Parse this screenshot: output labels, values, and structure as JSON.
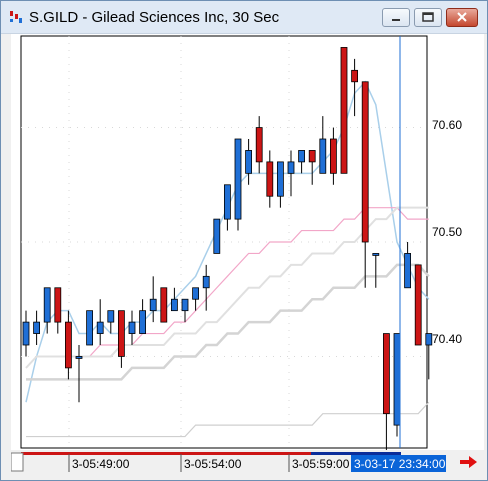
{
  "window": {
    "title": "S.GILD - Gilead Sciences Inc, 30 Sec",
    "icon": "candlestick-app-icon"
  },
  "colors": {
    "up": "#1f6fd6",
    "down": "#cc1515",
    "cursor": "#1f6fd6",
    "ma_fast": "#a9cfea",
    "ma_pink": "#f2a6c8",
    "ma_gray1": "#e0e0e0",
    "ma_gray2": "#d4d4d4",
    "time_highlight": "#0a64d8"
  },
  "axis": {
    "price_labels": [
      "70.60",
      "70.50",
      "70.40"
    ],
    "time_labels": [
      "3-05:49:00",
      "3-05:54:00",
      "3-05:59:00"
    ],
    "cursor_time": "3-03-17 23:34:00"
  },
  "chart_data": {
    "type": "candlestick",
    "ylim": [
      70.32,
      70.68
    ],
    "candles": [
      {
        "o": 70.41,
        "h": 70.44,
        "l": 70.4,
        "c": 70.43
      },
      {
        "o": 70.42,
        "h": 70.44,
        "l": 70.41,
        "c": 70.43
      },
      {
        "o": 70.43,
        "h": 70.46,
        "l": 70.42,
        "c": 70.46
      },
      {
        "o": 70.46,
        "h": 70.46,
        "l": 70.42,
        "c": 70.43
      },
      {
        "o": 70.43,
        "h": 70.44,
        "l": 70.38,
        "c": 70.39
      },
      {
        "o": 70.4,
        "h": 70.41,
        "l": 70.36,
        "c": 70.4
      },
      {
        "o": 70.41,
        "h": 70.44,
        "l": 70.41,
        "c": 70.44
      },
      {
        "o": 70.42,
        "h": 70.45,
        "l": 70.41,
        "c": 70.43
      },
      {
        "o": 70.43,
        "h": 70.44,
        "l": 70.42,
        "c": 70.44
      },
      {
        "o": 70.44,
        "h": 70.44,
        "l": 70.39,
        "c": 70.4
      },
      {
        "o": 70.42,
        "h": 70.44,
        "l": 70.41,
        "c": 70.43
      },
      {
        "o": 70.42,
        "h": 70.45,
        "l": 70.42,
        "c": 70.44
      },
      {
        "o": 70.44,
        "h": 70.47,
        "l": 70.43,
        "c": 70.45
      },
      {
        "o": 70.46,
        "h": 70.46,
        "l": 70.43,
        "c": 70.43
      },
      {
        "o": 70.44,
        "h": 70.46,
        "l": 70.44,
        "c": 70.45
      },
      {
        "o": 70.44,
        "h": 70.45,
        "l": 70.43,
        "c": 70.45
      },
      {
        "o": 70.45,
        "h": 70.46,
        "l": 70.44,
        "c": 70.46
      },
      {
        "o": 70.46,
        "h": 70.48,
        "l": 70.44,
        "c": 70.47
      },
      {
        "o": 70.49,
        "h": 70.52,
        "l": 70.49,
        "c": 70.52
      },
      {
        "o": 70.52,
        "h": 70.55,
        "l": 70.51,
        "c": 70.55
      },
      {
        "o": 70.52,
        "h": 70.59,
        "l": 70.51,
        "c": 70.59
      },
      {
        "o": 70.56,
        "h": 70.59,
        "l": 70.55,
        "c": 70.58
      },
      {
        "o": 70.6,
        "h": 70.61,
        "l": 70.56,
        "c": 70.57
      },
      {
        "o": 70.57,
        "h": 70.58,
        "l": 70.53,
        "c": 70.54
      },
      {
        "o": 70.54,
        "h": 70.57,
        "l": 70.53,
        "c": 70.57
      },
      {
        "o": 70.56,
        "h": 70.58,
        "l": 70.54,
        "c": 70.57
      },
      {
        "o": 70.57,
        "h": 70.58,
        "l": 70.56,
        "c": 70.58
      },
      {
        "o": 70.58,
        "h": 70.58,
        "l": 70.55,
        "c": 70.57
      },
      {
        "o": 70.56,
        "h": 70.61,
        "l": 70.56,
        "c": 70.59
      },
      {
        "o": 70.59,
        "h": 70.6,
        "l": 70.55,
        "c": 70.56
      },
      {
        "o": 70.67,
        "h": 70.67,
        "l": 70.56,
        "c": 70.56
      },
      {
        "o": 70.65,
        "h": 70.66,
        "l": 70.61,
        "c": 70.64
      },
      {
        "o": 70.64,
        "h": 70.64,
        "l": 70.46,
        "c": 70.5
      },
      {
        "o": 70.49,
        "h": 70.49,
        "l": 70.46,
        "c": 70.49
      },
      {
        "o": 70.42,
        "h": 70.42,
        "l": 70.31,
        "c": 70.35
      },
      {
        "o": 70.34,
        "h": 70.42,
        "l": 70.33,
        "c": 70.42
      },
      {
        "o": 70.46,
        "h": 70.5,
        "l": 70.46,
        "c": 70.49
      },
      {
        "o": 70.48,
        "h": 70.48,
        "l": 70.41,
        "c": 70.41
      },
      {
        "o": 70.41,
        "h": 70.42,
        "l": 70.38,
        "c": 70.42
      }
    ],
    "series": [
      {
        "values": [
          70.36,
          70.4,
          70.43,
          70.44,
          70.44,
          70.42,
          70.42,
          70.43,
          70.42,
          70.42,
          70.43,
          70.43,
          70.44,
          70.44,
          70.45,
          70.46,
          70.47,
          70.49,
          70.51,
          70.53,
          70.55,
          70.56,
          70.56,
          70.56,
          70.56,
          70.56,
          70.56,
          70.56,
          70.57,
          70.58,
          70.6,
          70.63,
          70.64,
          70.62,
          70.56,
          70.5,
          70.48,
          70.46,
          70.45
        ]
      },
      {
        "values": [
          70.39,
          70.4,
          70.4,
          70.4,
          70.4,
          70.4,
          70.4,
          70.41,
          70.41,
          70.41,
          70.41,
          70.42,
          70.42,
          70.42,
          70.43,
          70.43,
          70.44,
          70.45,
          70.46,
          70.47,
          70.48,
          70.49,
          70.49,
          70.5,
          70.5,
          70.5,
          70.51,
          70.51,
          70.51,
          70.51,
          70.52,
          70.52,
          70.53,
          70.53,
          70.53,
          70.53,
          70.52,
          70.52,
          70.52
        ]
      },
      {
        "values": [
          70.39,
          70.4,
          70.4,
          70.4,
          70.4,
          70.4,
          70.4,
          70.4,
          70.4,
          70.41,
          70.41,
          70.41,
          70.41,
          70.41,
          70.42,
          70.42,
          70.42,
          70.43,
          70.43,
          70.44,
          70.45,
          70.46,
          70.46,
          70.47,
          70.47,
          70.48,
          70.48,
          70.49,
          70.49,
          70.49,
          70.5,
          70.5,
          70.51,
          70.52,
          70.52,
          70.53,
          70.53,
          70.53,
          70.53
        ]
      },
      {
        "values": [
          70.38,
          70.38,
          70.38,
          70.38,
          70.38,
          70.38,
          70.38,
          70.38,
          70.38,
          70.38,
          70.39,
          70.39,
          70.39,
          70.39,
          70.4,
          70.4,
          70.4,
          70.41,
          70.41,
          70.42,
          70.42,
          70.43,
          70.43,
          70.43,
          70.44,
          70.44,
          70.44,
          70.45,
          70.45,
          70.46,
          70.46,
          70.46,
          70.47,
          70.47,
          70.47,
          70.48,
          70.48,
          70.48,
          70.47
        ]
      },
      {
        "values": [
          70.33,
          70.33,
          70.33,
          70.33,
          70.33,
          70.33,
          70.33,
          70.33,
          70.33,
          70.33,
          70.33,
          70.33,
          70.33,
          70.33,
          70.33,
          70.33,
          70.34,
          70.34,
          70.34,
          70.34,
          70.34,
          70.34,
          70.34,
          70.34,
          70.34,
          70.34,
          70.34,
          70.34,
          70.35,
          70.35,
          70.35,
          70.35,
          70.35,
          70.35,
          70.35,
          70.35,
          70.35,
          70.35,
          70.36
        ]
      }
    ]
  }
}
